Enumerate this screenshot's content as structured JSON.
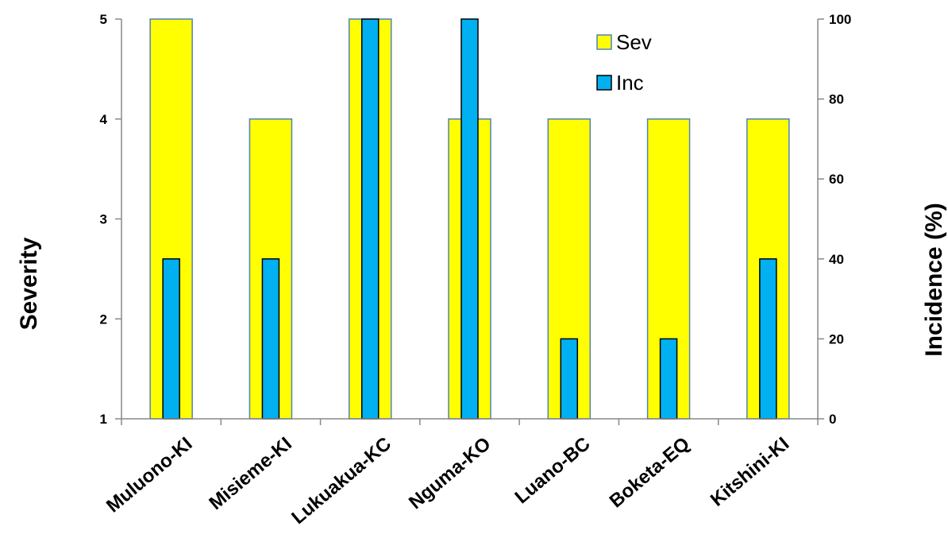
{
  "chart_data": {
    "type": "bar",
    "categories": [
      "Muluono-KI",
      "Misieme-KI",
      "Lukuakua-KC",
      "Nguma-KO",
      "Luano-BC",
      "Boketa-EQ",
      "Kitshini-KI"
    ],
    "series": [
      {
        "name": "Sev",
        "axis": "left",
        "values": [
          5,
          4,
          5,
          4,
          4,
          4,
          4
        ],
        "color": "#ffff00",
        "stroke": "#4f81bd"
      },
      {
        "name": "Inc",
        "axis": "right",
        "values": [
          40,
          40,
          100,
          100,
          20,
          20,
          40
        ],
        "color": "#00b0f0",
        "stroke": "#000000"
      }
    ],
    "ylabel": "Severity",
    "y2label": "Incidence (%)",
    "ylim": [
      1,
      5
    ],
    "y2lim": [
      0,
      100
    ],
    "yticks": [
      1,
      2,
      3,
      4,
      5
    ],
    "y2ticks": [
      0,
      20,
      40,
      60,
      80,
      100
    ],
    "legend": {
      "position": "top-right",
      "entries": [
        "Sev",
        "Inc"
      ]
    },
    "grid": false
  }
}
